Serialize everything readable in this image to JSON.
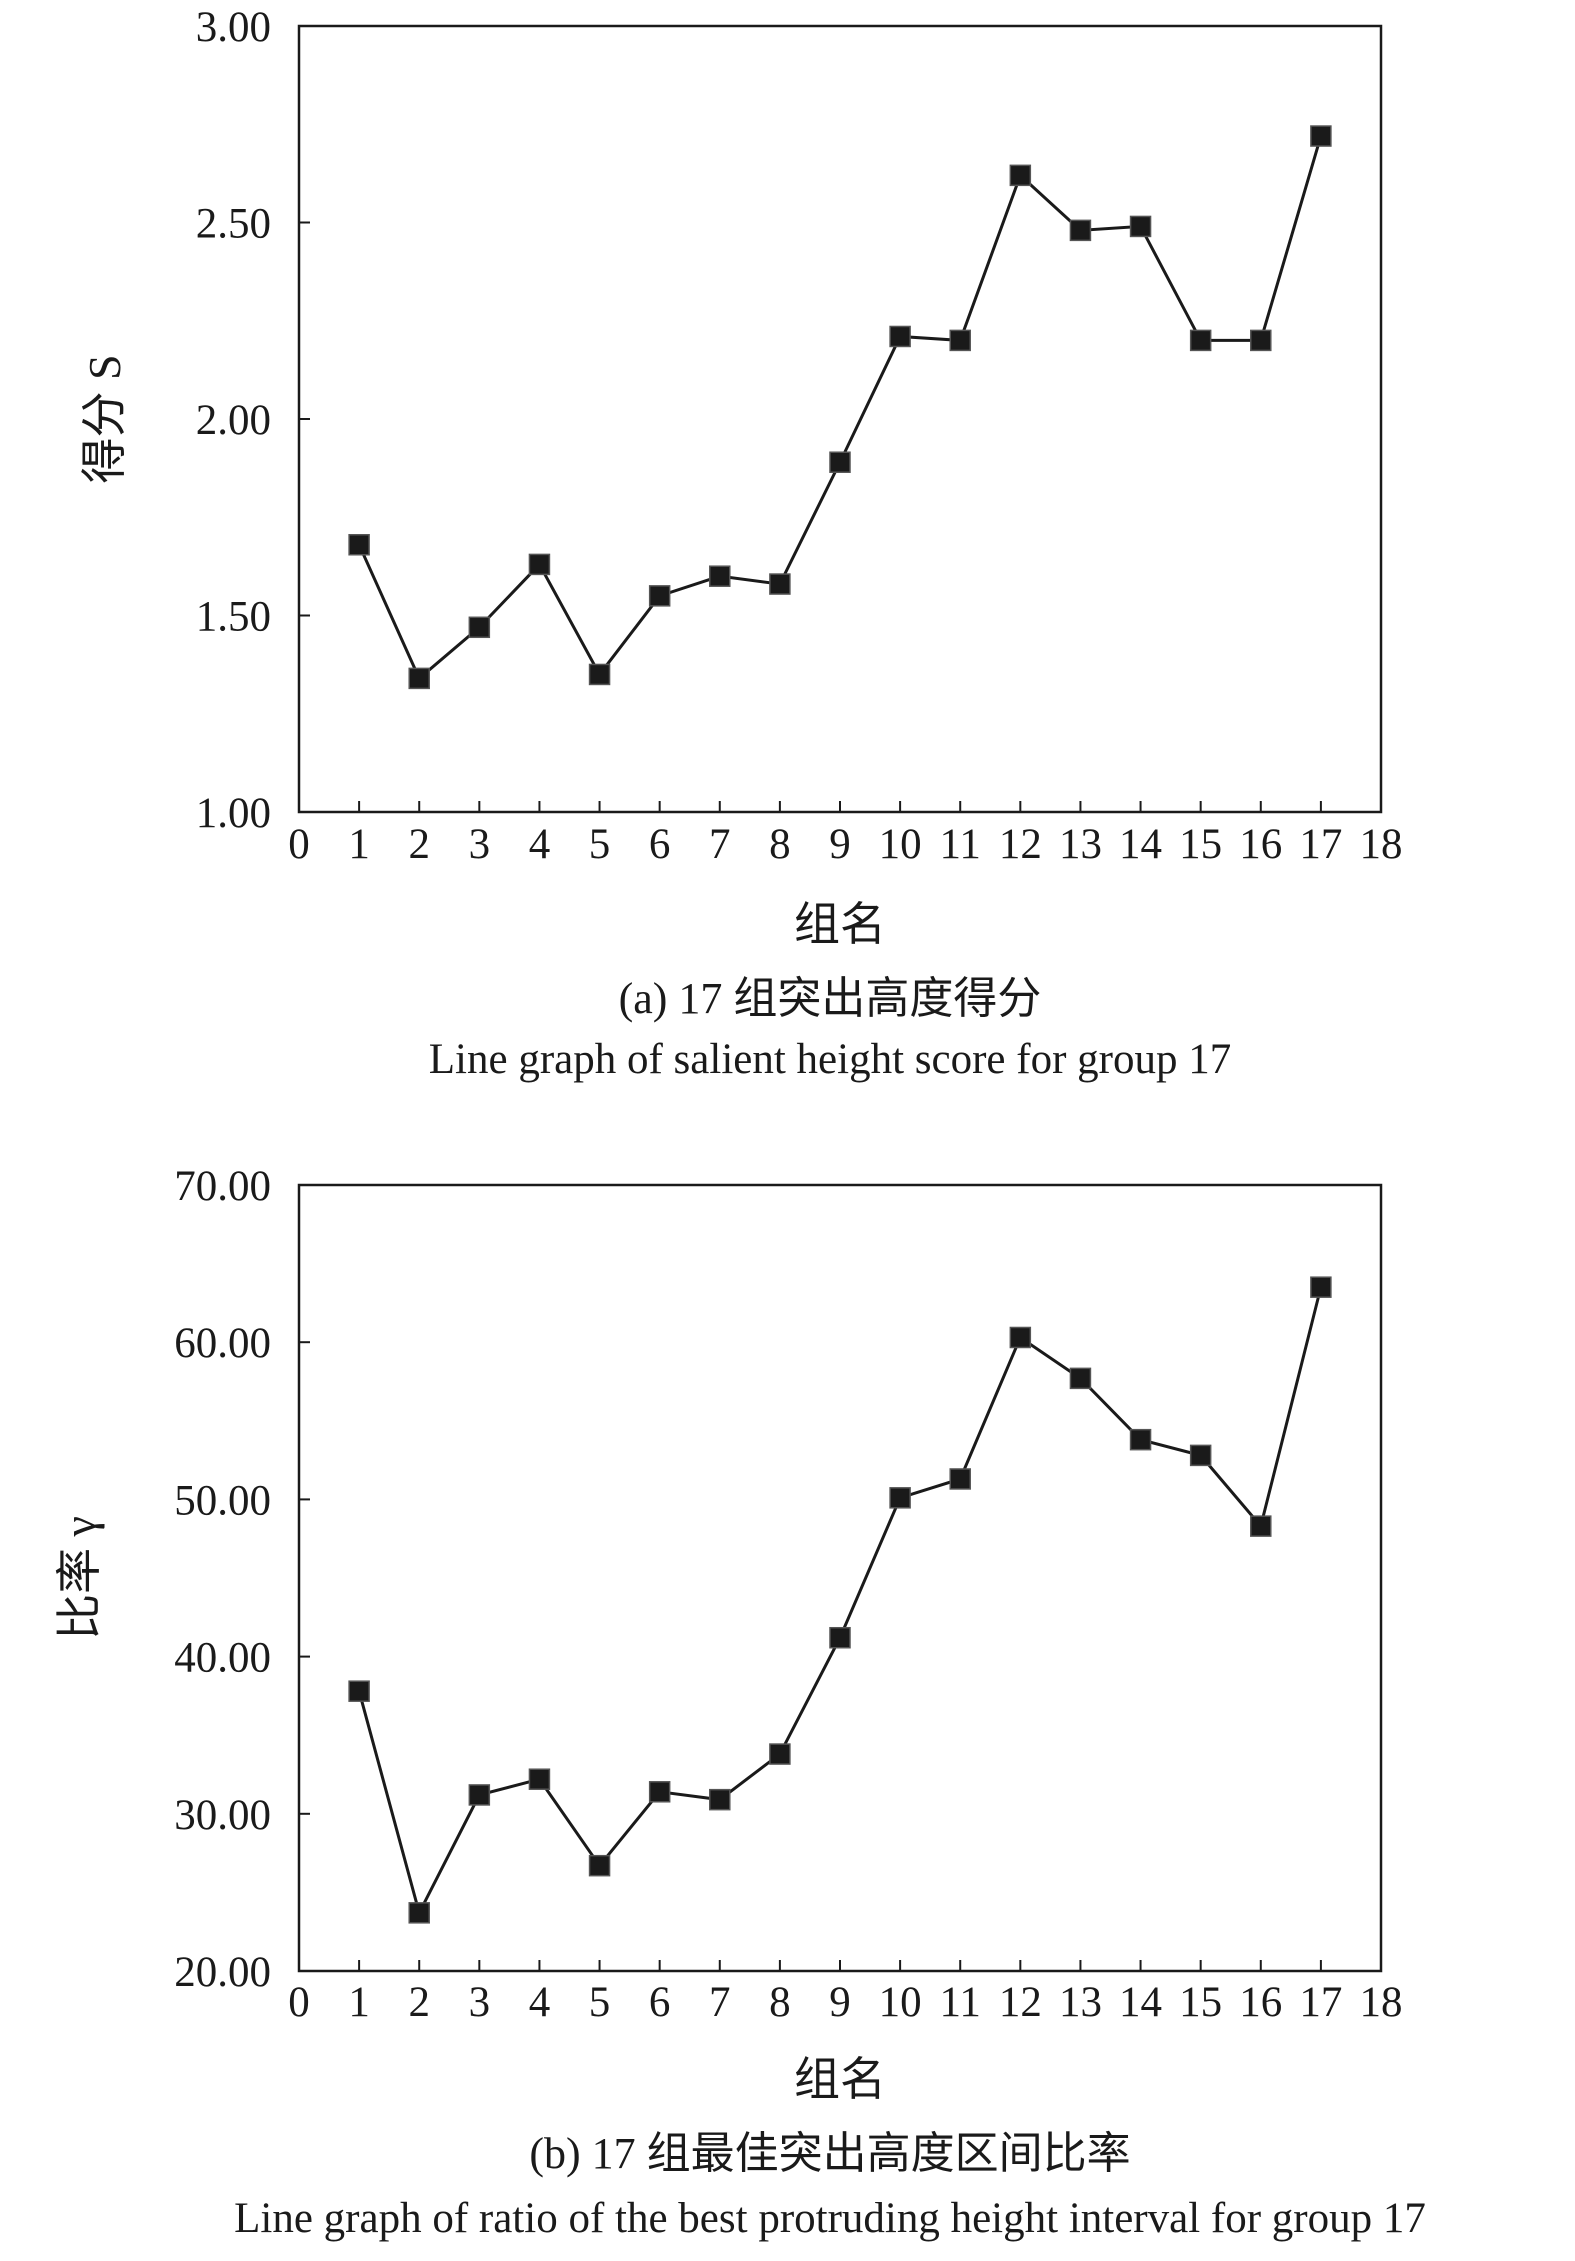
{
  "chart_data": [
    {
      "type": "line",
      "xlabel": "组名",
      "ylabel": "得分 S",
      "xlim": [
        0,
        18
      ],
      "ylim": [
        1.0,
        3.0
      ],
      "xticks": [
        "0",
        "1",
        "2",
        "3",
        "4",
        "5",
        "6",
        "7",
        "8",
        "9",
        "10",
        "11",
        "12",
        "13",
        "14",
        "15",
        "16",
        "17",
        "18"
      ],
      "yticks": [
        "1.00",
        "1.50",
        "2.00",
        "2.50",
        "3.00"
      ],
      "grid": false,
      "marker": "square",
      "color": "#1a1a1a",
      "x": [
        1,
        2,
        3,
        4,
        5,
        6,
        7,
        8,
        9,
        10,
        11,
        12,
        13,
        14,
        15,
        16,
        17
      ],
      "values": [
        1.68,
        1.34,
        1.47,
        1.63,
        1.35,
        1.55,
        1.6,
        1.58,
        1.89,
        2.21,
        2.2,
        2.62,
        2.48,
        2.49,
        2.2,
        2.2,
        2.72
      ],
      "caption_cn": "(a) 17 组突出高度得分",
      "caption_en": "Line graph of salient height score for group 17"
    },
    {
      "type": "line",
      "xlabel": "组名",
      "ylabel": "比率 γ",
      "xlim": [
        0,
        18
      ],
      "ylim": [
        20.0,
        70.0
      ],
      "xticks": [
        "0",
        "1",
        "2",
        "3",
        "4",
        "5",
        "6",
        "7",
        "8",
        "9",
        "10",
        "11",
        "12",
        "13",
        "14",
        "15",
        "16",
        "17",
        "18"
      ],
      "yticks": [
        "20.00",
        "30.00",
        "40.00",
        "50.00",
        "60.00",
        "70.00"
      ],
      "grid": false,
      "marker": "square",
      "color": "#1a1a1a",
      "x": [
        1,
        2,
        3,
        4,
        5,
        6,
        7,
        8,
        9,
        10,
        11,
        12,
        13,
        14,
        15,
        16,
        17
      ],
      "values": [
        37.8,
        23.7,
        31.2,
        32.2,
        26.7,
        31.4,
        30.9,
        33.8,
        41.2,
        50.1,
        51.3,
        60.3,
        57.7,
        53.8,
        52.8,
        48.3,
        63.5
      ],
      "caption_cn": "(b) 17 组最佳突出高度区间比率",
      "caption_en": "Line graph of ratio of the best protruding height interval for group 17"
    }
  ]
}
